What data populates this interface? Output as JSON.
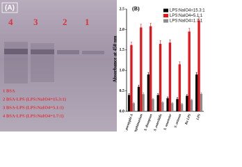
{
  "panel_a": {
    "label": "(A)",
    "lanes": [
      "4",
      "3",
      "2",
      "1"
    ],
    "legend": [
      "1 BSA",
      "2 BSA-LPS (LPS:NaIO4=15.3:1)",
      "3 BSA-LPS (LPS:NaIO4=5.1:1)",
      "4 BSA-LPS (LPS:NaIO4=1.7:1)"
    ]
  },
  "chart_data": {
    "type": "bar",
    "title": "(B)",
    "y_label": "Absorbance at 450 nm",
    "categories": [
      "S. paratyphi A",
      "S. typhimurium",
      "S. thompson",
      "S. enteritidis",
      "S. muenster",
      "S. arizona",
      "Ra LPS",
      "LPS"
    ],
    "series": [
      {
        "name": "LPS:NaIO4=15.3:1",
        "color": "#000000",
        "values": [
          0.4,
          0.6,
          0.9,
          0.4,
          0.32,
          0.3,
          0.38,
          0.9
        ],
        "errors": [
          0.03,
          0.04,
          0.05,
          0.03,
          0.03,
          0.03,
          0.03,
          0.05
        ]
      },
      {
        "name": "LPS:NaIO4=5.1:1",
        "color": "#e8141c",
        "values": [
          1.62,
          2.05,
          2.08,
          1.65,
          1.68,
          1.15,
          1.95,
          2.22
        ],
        "errors": [
          0.07,
          0.08,
          0.07,
          0.08,
          0.07,
          0.06,
          0.08,
          0.08
        ]
      },
      {
        "name": "LPS:NaIO4=1.7:1",
        "color": "#8c8c8c",
        "values": [
          0.2,
          0.42,
          0.3,
          0.22,
          0.2,
          0.18,
          0.28,
          0.43
        ],
        "errors": [
          0.02,
          0.03,
          0.02,
          0.02,
          0.02,
          0.02,
          0.02,
          0.03
        ]
      }
    ],
    "ylim": [
      0,
      2.5
    ],
    "yticks": [
      {
        "value": 0,
        "label": "0.0"
      },
      0.5,
      {
        "value": 1,
        "label": "1.0"
      },
      1.5,
      {
        "value": 2,
        "label": "2.0"
      },
      2.5
    ],
    "legend_position": "upper right"
  }
}
